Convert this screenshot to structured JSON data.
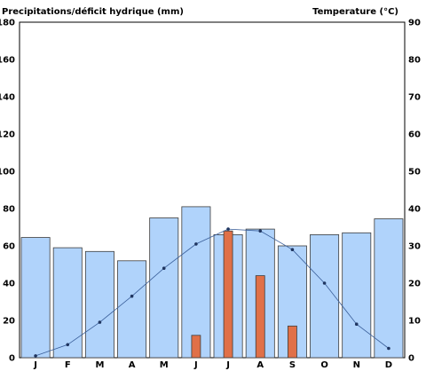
{
  "chart_data": {
    "type": "bar",
    "title": "",
    "ylabel_left": "Precipitations/déficit hydrique (mm)",
    "ylabel_right": "Temperature (°C)",
    "xlabel": "",
    "categories": [
      "J",
      "F",
      "M",
      "A",
      "M",
      "J",
      "J",
      "A",
      "S",
      "O",
      "N",
      "D"
    ],
    "ylim_left": [
      0,
      180
    ],
    "ylim_right": [
      0,
      90
    ],
    "yticks_left": [
      0,
      20,
      40,
      60,
      80,
      100,
      120,
      140,
      160,
      180
    ],
    "yticks_right": [
      0,
      10,
      20,
      30,
      40,
      50,
      60,
      70,
      80,
      90
    ],
    "grid": false,
    "series": [
      {
        "kind": "bar",
        "axis": "left",
        "color": "#b0d3fb",
        "values": [
          64.5,
          59,
          57,
          52,
          75,
          81,
          66,
          69,
          60,
          66,
          67,
          74.5
        ]
      },
      {
        "kind": "bar",
        "axis": "left",
        "color": "#e07048",
        "values": [
          0,
          0,
          0,
          0,
          0,
          12,
          68,
          44,
          17,
          0,
          0,
          0
        ]
      },
      {
        "kind": "line",
        "axis": "right",
        "color": "#3a5f9a",
        "values": [
          0.5,
          3.5,
          9.5,
          16.5,
          24,
          30.5,
          34.5,
          34,
          29,
          20,
          9,
          2.5
        ]
      }
    ]
  }
}
